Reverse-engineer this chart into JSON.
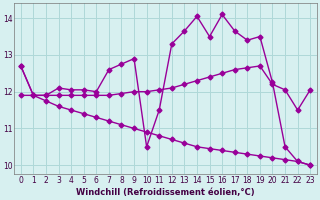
{
  "xlabel": "Windchill (Refroidissement éolien,°C)",
  "background_color": "#d7f0f0",
  "grid_color": "#aed8d8",
  "line_color": "#990099",
  "x_ticks": [
    0,
    1,
    2,
    3,
    4,
    5,
    6,
    7,
    8,
    9,
    10,
    11,
    12,
    13,
    14,
    15,
    16,
    17,
    18,
    19,
    20,
    21,
    22,
    23
  ],
  "y_ticks": [
    10,
    11,
    12,
    13,
    14
  ],
  "ylim": [
    9.75,
    14.4
  ],
  "xlim": [
    -0.5,
    23.5
  ],
  "line1_x": [
    0,
    1,
    2,
    3,
    4,
    5,
    6,
    7,
    8,
    9,
    10,
    11,
    12,
    13,
    14,
    15,
    16,
    17,
    18,
    19,
    20,
    21,
    22,
    23
  ],
  "line1_y": [
    12.7,
    11.9,
    11.9,
    12.1,
    12.05,
    12.05,
    12.0,
    12.6,
    12.75,
    12.9,
    10.5,
    11.5,
    13.3,
    13.65,
    14.05,
    13.5,
    14.1,
    13.65,
    13.4,
    13.5,
    12.25,
    10.5,
    10.1,
    10.0
  ],
  "line2_x": [
    0,
    1,
    2,
    3,
    4,
    5,
    6,
    7,
    8,
    9,
    10,
    11,
    12,
    13,
    14,
    15,
    16,
    17,
    18,
    19,
    20,
    21,
    22,
    23
  ],
  "line2_y": [
    11.9,
    11.9,
    11.9,
    11.9,
    11.9,
    11.9,
    11.9,
    11.9,
    11.95,
    12.0,
    12.0,
    12.05,
    12.1,
    12.2,
    12.3,
    12.4,
    12.5,
    12.6,
    12.65,
    12.7,
    12.2,
    12.05,
    11.5,
    12.05
  ],
  "line3_x": [
    0,
    1,
    2,
    3,
    4,
    5,
    6,
    7,
    8,
    9,
    10,
    11,
    12,
    13,
    14,
    15,
    16,
    17,
    18,
    19,
    20,
    21,
    22,
    23
  ],
  "line3_y": [
    12.7,
    11.9,
    11.75,
    11.6,
    11.5,
    11.4,
    11.3,
    11.2,
    11.1,
    11.0,
    10.9,
    10.8,
    10.7,
    10.6,
    10.5,
    10.45,
    10.4,
    10.35,
    10.3,
    10.25,
    10.2,
    10.15,
    10.1,
    10.0
  ],
  "marker": "D",
  "markersize": 2.5,
  "linewidth": 1.0,
  "tick_fontsize": 5.5,
  "label_fontsize": 6.0
}
